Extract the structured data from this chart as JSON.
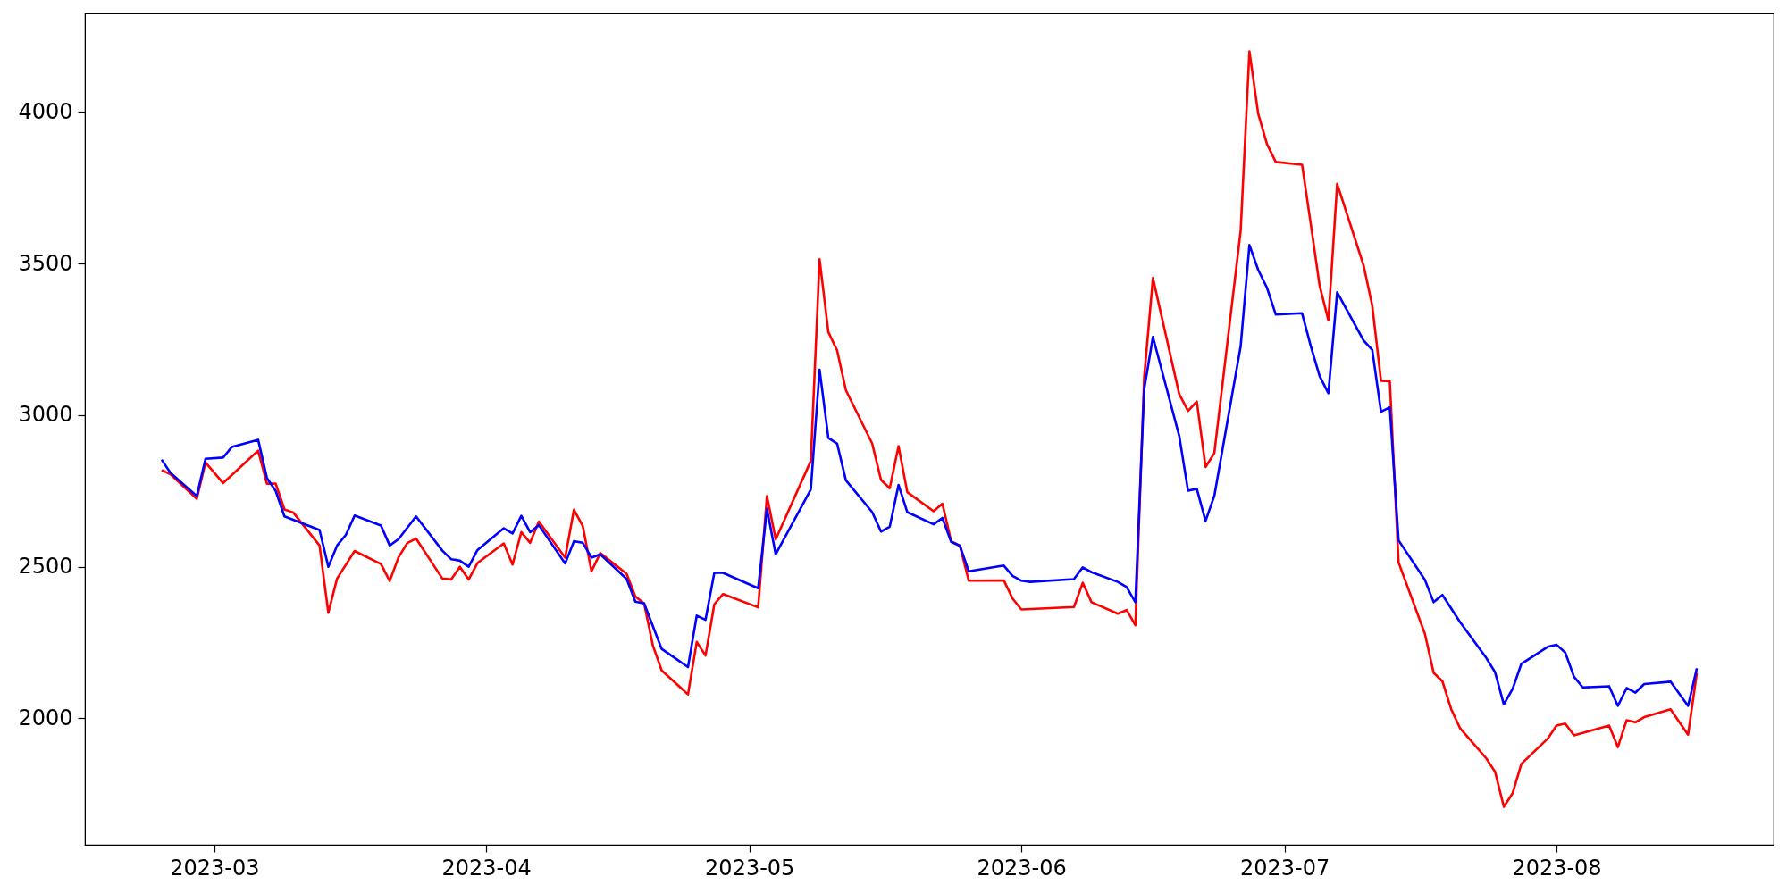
{
  "chart_data": {
    "type": "line",
    "xlim": [
      "2023-02-14T06:00",
      "2023-08-25T18:00"
    ],
    "xticks": [
      {
        "value": "2023-03-01",
        "label": "2023-03"
      },
      {
        "value": "2023-04-01",
        "label": "2023-04"
      },
      {
        "value": "2023-05-01",
        "label": "2023-05"
      },
      {
        "value": "2023-06-01",
        "label": "2023-06"
      },
      {
        "value": "2023-07-01",
        "label": "2023-07"
      },
      {
        "value": "2023-08-01",
        "label": "2023-08"
      }
    ],
    "ylim": [
      1583,
      4325
    ],
    "yticks": [
      2000,
      2500,
      3000,
      3500,
      4000
    ],
    "grid": false,
    "series": [
      {
        "color": "#ff0000",
        "x": [
          "2023-02-23",
          "2023-02-24",
          "2023-02-27",
          "2023-02-28",
          "2023-03-02",
          "2023-03-06",
          "2023-03-07",
          "2023-03-08",
          "2023-03-09",
          "2023-03-10",
          "2023-03-13",
          "2023-03-14",
          "2023-03-15",
          "2023-03-17",
          "2023-03-20",
          "2023-03-21",
          "2023-03-22",
          "2023-03-23",
          "2023-03-24",
          "2023-03-27",
          "2023-03-28",
          "2023-03-29",
          "2023-03-30",
          "2023-03-31",
          "2023-04-03",
          "2023-04-04",
          "2023-04-05",
          "2023-04-06",
          "2023-04-07",
          "2023-04-10",
          "2023-04-11",
          "2023-04-12",
          "2023-04-13",
          "2023-04-14",
          "2023-04-17",
          "2023-04-18",
          "2023-04-19",
          "2023-04-20",
          "2023-04-21",
          "2023-04-24",
          "2023-04-25",
          "2023-04-26",
          "2023-04-27",
          "2023-04-28",
          "2023-05-02",
          "2023-05-03",
          "2023-05-04",
          "2023-05-08",
          "2023-05-09",
          "2023-05-10",
          "2023-05-11",
          "2023-05-12",
          "2023-05-15",
          "2023-05-16",
          "2023-05-17",
          "2023-05-18",
          "2023-05-19",
          "2023-05-22",
          "2023-05-23",
          "2023-05-24",
          "2023-05-25",
          "2023-05-26",
          "2023-05-30",
          "2023-05-31",
          "2023-06-01",
          "2023-06-07",
          "2023-06-08",
          "2023-06-09",
          "2023-06-12",
          "2023-06-13",
          "2023-06-14",
          "2023-06-15",
          "2023-06-16",
          "2023-06-19",
          "2023-06-20",
          "2023-06-21",
          "2023-06-22",
          "2023-06-23",
          "2023-06-26",
          "2023-06-27",
          "2023-06-28",
          "2023-06-29",
          "2023-06-30",
          "2023-07-03",
          "2023-07-04",
          "2023-07-05",
          "2023-07-06",
          "2023-07-07",
          "2023-07-10",
          "2023-07-11",
          "2023-07-12",
          "2023-07-13",
          "2023-07-14",
          "2023-07-17",
          "2023-07-18",
          "2023-07-19",
          "2023-07-20",
          "2023-07-21",
          "2023-07-24",
          "2023-07-25",
          "2023-07-26",
          "2023-07-27",
          "2023-07-28",
          "2023-07-31",
          "2023-08-01",
          "2023-08-02",
          "2023-08-03",
          "2023-08-04",
          "2023-08-07",
          "2023-08-08",
          "2023-08-09",
          "2023-08-10",
          "2023-08-11",
          "2023-08-14",
          "2023-08-16",
          "2023-08-17"
        ],
        "values": [
          2819,
          2805,
          2724,
          2844,
          2776,
          2883,
          2774,
          2774,
          2689,
          2679,
          2570,
          2348,
          2461,
          2552,
          2509,
          2453,
          2531,
          2578,
          2593,
          2461,
          2458,
          2500,
          2458,
          2512,
          2577,
          2507,
          2614,
          2579,
          2649,
          2530,
          2688,
          2635,
          2485,
          2545,
          2477,
          2402,
          2379,
          2240,
          2158,
          2079,
          2252,
          2207,
          2376,
          2410,
          2366,
          2733,
          2590,
          2849,
          3514,
          3274,
          3213,
          3082,
          2906,
          2787,
          2759,
          2898,
          2746,
          2683,
          2708,
          2584,
          2569,
          2454,
          2455,
          2395,
          2359,
          2367,
          2447,
          2383,
          2345,
          2357,
          2307,
          3124,
          3452,
          3069,
          3014,
          3045,
          2829,
          2875,
          3608,
          4200,
          3994,
          3894,
          3835,
          3826,
          3629,
          3427,
          3313,
          3763,
          3495,
          3361,
          3113,
          3112,
          2514,
          2279,
          2150,
          2122,
          2030,
          1968,
          1868,
          1824,
          1708,
          1753,
          1850,
          1933,
          1976,
          1983,
          1944,
          1952,
          1976,
          1905,
          1994,
          1987,
          2004,
          2030,
          1946,
          2150
        ]
      },
      {
        "color": "#0000ff",
        "x": [
          "2023-02-23",
          "2023-02-24",
          "2023-02-27",
          "2023-02-28",
          "2023-03-02",
          "2023-03-03",
          "2023-03-06",
          "2023-03-07",
          "2023-03-08",
          "2023-03-09",
          "2023-03-13",
          "2023-03-14",
          "2023-03-15",
          "2023-03-16",
          "2023-03-17",
          "2023-03-20",
          "2023-03-21",
          "2023-03-22",
          "2023-03-24",
          "2023-03-27",
          "2023-03-28",
          "2023-03-29",
          "2023-03-30",
          "2023-03-31",
          "2023-04-03",
          "2023-04-04",
          "2023-04-05",
          "2023-04-06",
          "2023-04-07",
          "2023-04-10",
          "2023-04-11",
          "2023-04-12",
          "2023-04-13",
          "2023-04-14",
          "2023-04-17",
          "2023-04-18",
          "2023-04-19",
          "2023-04-21",
          "2023-04-24",
          "2023-04-25",
          "2023-04-26",
          "2023-04-27",
          "2023-04-28",
          "2023-05-02",
          "2023-05-03",
          "2023-05-04",
          "2023-05-08",
          "2023-05-09",
          "2023-05-10",
          "2023-05-11",
          "2023-05-12",
          "2023-05-15",
          "2023-05-16",
          "2023-05-17",
          "2023-05-18",
          "2023-05-19",
          "2023-05-22",
          "2023-05-23",
          "2023-05-24",
          "2023-05-25",
          "2023-05-26",
          "2023-05-30",
          "2023-05-31",
          "2023-06-01",
          "2023-06-02",
          "2023-06-07",
          "2023-06-08",
          "2023-06-09",
          "2023-06-12",
          "2023-06-13",
          "2023-06-14",
          "2023-06-15",
          "2023-06-16",
          "2023-06-19",
          "2023-06-20",
          "2023-06-21",
          "2023-06-22",
          "2023-06-23",
          "2023-06-26",
          "2023-06-27",
          "2023-06-28",
          "2023-06-29",
          "2023-06-30",
          "2023-07-03",
          "2023-07-04",
          "2023-07-05",
          "2023-07-06",
          "2023-07-07",
          "2023-07-10",
          "2023-07-11",
          "2023-07-12",
          "2023-07-13",
          "2023-07-14",
          "2023-07-17",
          "2023-07-18",
          "2023-07-19",
          "2023-07-21",
          "2023-07-24",
          "2023-07-25",
          "2023-07-26",
          "2023-07-27",
          "2023-07-28",
          "2023-07-31",
          "2023-08-01",
          "2023-08-02",
          "2023-08-03",
          "2023-08-04",
          "2023-08-07",
          "2023-08-08",
          "2023-08-09",
          "2023-08-10",
          "2023-08-11",
          "2023-08-14",
          "2023-08-16",
          "2023-08-17"
        ],
        "values": [
          2853,
          2810,
          2733,
          2856,
          2860,
          2895,
          2919,
          2793,
          2750,
          2666,
          2621,
          2500,
          2570,
          2605,
          2669,
          2636,
          2570,
          2591,
          2666,
          2553,
          2525,
          2520,
          2500,
          2555,
          2627,
          2610,
          2668,
          2614,
          2637,
          2511,
          2584,
          2579,
          2530,
          2541,
          2460,
          2385,
          2379,
          2229,
          2169,
          2339,
          2325,
          2480,
          2480,
          2429,
          2691,
          2541,
          2755,
          3150,
          2925,
          2906,
          2785,
          2680,
          2616,
          2632,
          2770,
          2680,
          2640,
          2661,
          2582,
          2569,
          2485,
          2504,
          2470,
          2454,
          2450,
          2459,
          2498,
          2482,
          2450,
          2433,
          2383,
          3085,
          3258,
          2931,
          2751,
          2757,
          2651,
          2734,
          3227,
          3561,
          3479,
          3420,
          3332,
          3336,
          3227,
          3129,
          3072,
          3405,
          3247,
          3215,
          3011,
          3026,
          2587,
          2457,
          2383,
          2407,
          2318,
          2199,
          2152,
          2046,
          2097,
          2180,
          2236,
          2243,
          2217,
          2137,
          2102,
          2106,
          2041,
          2100,
          2085,
          2113,
          2121,
          2041,
          2165
        ]
      }
    ]
  }
}
